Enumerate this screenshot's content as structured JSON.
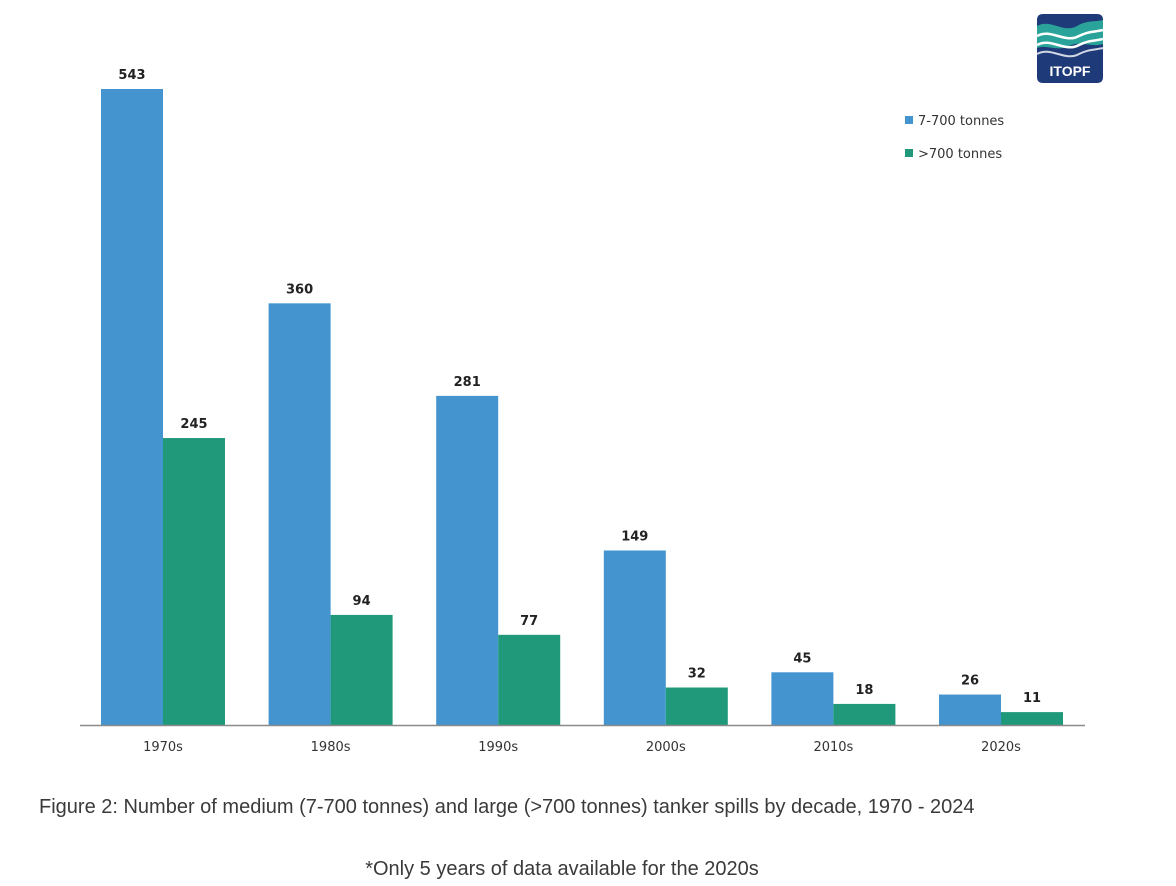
{
  "logo": {
    "text": "ITOPF",
    "colors": {
      "navy": "#1f3a78",
      "teal": "#2aa49a",
      "wave_light": "#ffffff"
    }
  },
  "chart_data": {
    "type": "bar",
    "title": "",
    "xlabel": "",
    "ylabel": "",
    "categories": [
      "1970s",
      "1980s",
      "1990s",
      "2000s",
      "2010s",
      "2020s"
    ],
    "series": [
      {
        "name": "7-700 tonnes",
        "color": "#4394cf",
        "values": [
          543,
          360,
          281,
          149,
          45,
          26
        ]
      },
      {
        "name": ">700 tonnes",
        "color": "#1f9979",
        "values": [
          245,
          94,
          77,
          32,
          18,
          11
        ]
      }
    ],
    "ylim": [
      0,
      543
    ],
    "grid": false,
    "data_labels": true,
    "legend_position": "top-right"
  },
  "captions": {
    "main": "Figure 2: Number of medium (7-700 tonnes) and large (>700 tonnes) tanker spills by decade, 1970 - 2024",
    "note": "*Only 5 years of data available for the 2020s"
  }
}
